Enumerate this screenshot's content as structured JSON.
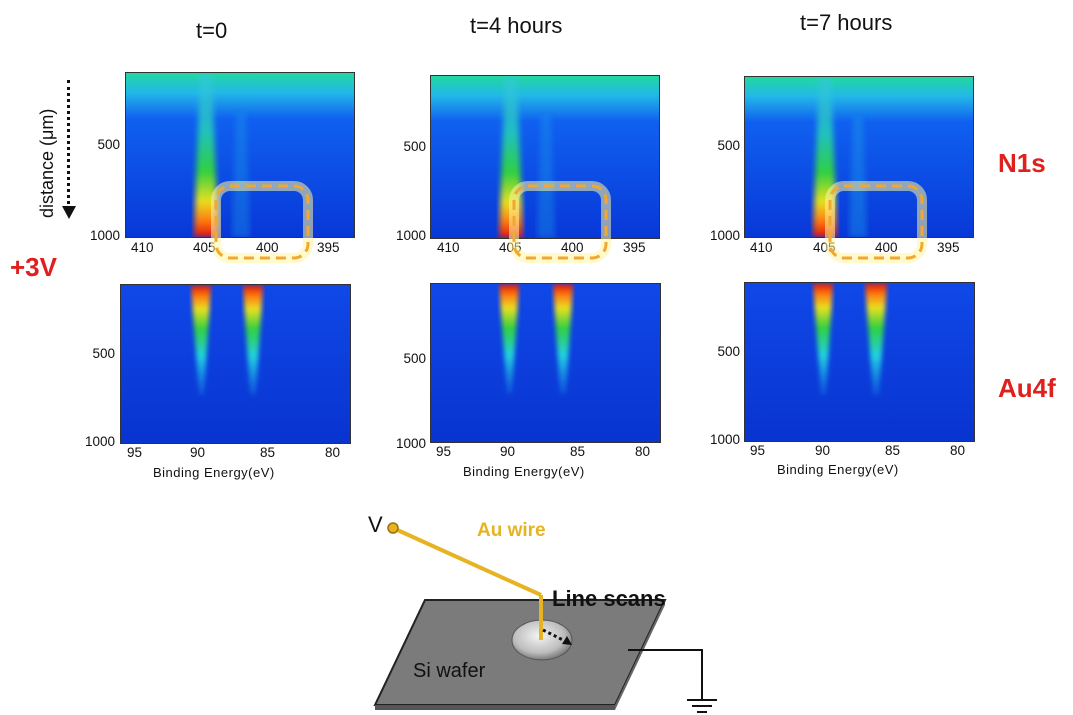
{
  "columns": [
    {
      "title": "t=0"
    },
    {
      "title": "t=4 hours"
    },
    {
      "title": "t=7 hours"
    }
  ],
  "rows": {
    "n1s": {
      "label": "N1s",
      "x_ticks": [
        "410",
        "405",
        "400",
        "395"
      ],
      "y_ticks": [
        "500",
        "1000"
      ]
    },
    "au4f": {
      "label": "Au4f",
      "x_ticks": [
        "95",
        "90",
        "85",
        "80"
      ],
      "y_ticks": [
        "500",
        "1000"
      ],
      "xlabel": "Binding Energy(eV)"
    }
  },
  "y_axis_label": "distance (μm)",
  "bias_label": "+3V",
  "schematic": {
    "voltage_label": "V",
    "wire_label": "Au wire",
    "scan_label": "Line scans",
    "wafer_label": "Si wafer"
  },
  "colors": {
    "label_red": "#e0201c",
    "wire_gold": "#e6b422",
    "highlight_box": "#f0a830"
  }
}
